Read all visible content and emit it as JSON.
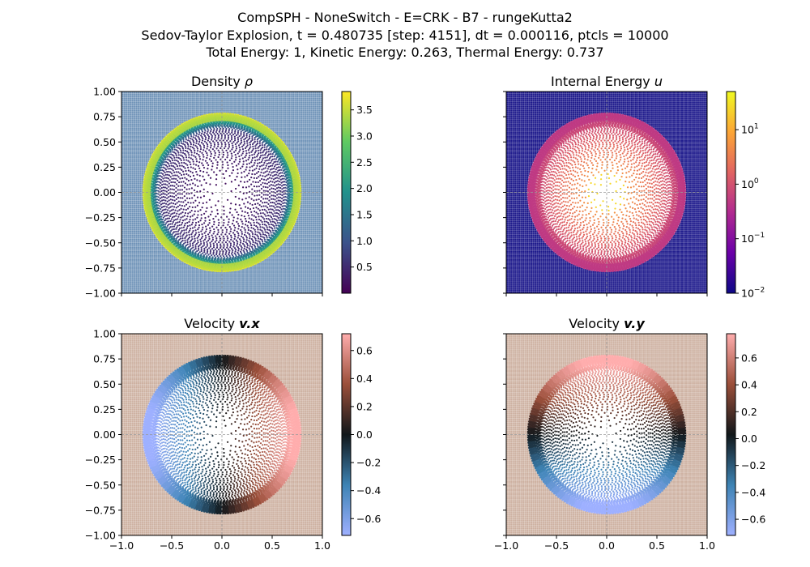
{
  "figure": {
    "title_lines": [
      "CompSPH - NoneSwitch - E=CRK - B7 - rungeKutta2",
      "Sedov-Taylor Explosion, t = 0.480735 [step: 4151], dt = 0.000116, ptcls = 10000",
      "Total Energy: 1, Kinetic Energy: 0.263, Thermal Energy: 0.737"
    ]
  },
  "chart_data": [
    {
      "type": "scatter",
      "title": "Density ρ",
      "title_main": "Density",
      "title_sym": "ρ",
      "xlim": [
        -1.0,
        1.0
      ],
      "ylim": [
        -1.0,
        1.0
      ],
      "xticks": [
        "",
        "",
        "",
        "",
        ""
      ],
      "yticks": [
        "−1.00",
        "−0.75",
        "−0.50",
        "−0.25",
        "0.00",
        "0.25",
        "0.50",
        "0.75",
        "1.00"
      ],
      "grid": true,
      "colormap": "viridis",
      "colors": [
        "#440154",
        "#3b528b",
        "#21918c",
        "#5ec962",
        "#fde725"
      ],
      "background": "#6f93b8",
      "shell_radius": 0.78,
      "colorbar": {
        "scale": "linear",
        "range": [
          0.0,
          3.85
        ],
        "ticks": [
          0.5,
          1.0,
          1.5,
          2.0,
          2.5,
          3.0,
          3.5
        ],
        "labels": [
          "0.5",
          "1.0",
          "1.5",
          "2.0",
          "2.5",
          "3.0",
          "3.5"
        ]
      }
    },
    {
      "type": "scatter",
      "title": "Internal Energy u",
      "title_main": "Internal Energy",
      "title_sym": "u",
      "xlim": [
        -1.0,
        1.0
      ],
      "ylim": [
        -1.0,
        1.0
      ],
      "xticks": [
        "",
        "",
        "",
        "",
        ""
      ],
      "yticks": [
        "",
        "",
        "",
        "",
        "",
        "",
        "",
        "",
        ""
      ],
      "grid": true,
      "colormap": "plasma",
      "colors": [
        "#0d0887",
        "#6a00a8",
        "#b12a90",
        "#e16462",
        "#fca636",
        "#f0f921"
      ],
      "background": "#1e1a8c",
      "shell_radius": 0.78,
      "colorbar": {
        "scale": "log",
        "range": [
          0.01,
          50
        ],
        "ticks": [
          0.01,
          0.1,
          1,
          10
        ],
        "labels": [
          "10",
          "10",
          "10",
          "10"
        ],
        "exponents": [
          "−2",
          "−1",
          "0",
          "1"
        ]
      }
    },
    {
      "type": "scatter",
      "title": "Velocity v.x",
      "title_main": "Velocity",
      "title_sym": "v.x",
      "xlim": [
        -1.0,
        1.0
      ],
      "ylim": [
        -1.0,
        1.0
      ],
      "xticks": [
        "−1.0",
        "−0.5",
        "0.0",
        "0.5",
        "1.0"
      ],
      "yticks": [
        "−1.00",
        "−0.75",
        "−0.50",
        "−0.25",
        "0.00",
        "0.25",
        "0.50",
        "0.75",
        "1.00"
      ],
      "grid": true,
      "colormap": "berlin",
      "colors": [
        "#9eb0ff",
        "#3d83b4",
        "#11171a",
        "#9b4f3a",
        "#ffadad"
      ],
      "background": "#cdb0a0",
      "shell_radius": 0.78,
      "colorbar": {
        "scale": "linear",
        "range": [
          -0.72,
          0.72
        ],
        "ticks": [
          -0.6,
          -0.4,
          -0.2,
          0.0,
          0.2,
          0.4,
          0.6
        ],
        "labels": [
          "−0.6",
          "−0.4",
          "−0.2",
          "0.0",
          "0.2",
          "0.4",
          "0.6"
        ]
      }
    },
    {
      "type": "scatter",
      "title": "Velocity v.y",
      "title_main": "Velocity",
      "title_sym": "v.y",
      "xlim": [
        -1.0,
        1.0
      ],
      "ylim": [
        -1.0,
        1.0
      ],
      "xticks": [
        "−1.0",
        "−0.5",
        "0.0",
        "0.5",
        "1.0"
      ],
      "yticks": [
        "",
        "",
        "",
        "",
        "",
        "",
        "",
        "",
        ""
      ],
      "grid": true,
      "colormap": "berlin",
      "colors": [
        "#9eb0ff",
        "#3d83b4",
        "#11171a",
        "#9b4f3a",
        "#ffadad"
      ],
      "background": "#cdb0a0",
      "shell_radius": 0.78,
      "colorbar": {
        "scale": "linear",
        "range": [
          -0.72,
          0.78
        ],
        "ticks": [
          -0.6,
          -0.4,
          -0.2,
          0.0,
          0.2,
          0.4,
          0.6
        ],
        "labels": [
          "−0.6",
          "−0.4",
          "−0.2",
          "0.0",
          "0.2",
          "0.4",
          "0.6"
        ]
      }
    }
  ]
}
